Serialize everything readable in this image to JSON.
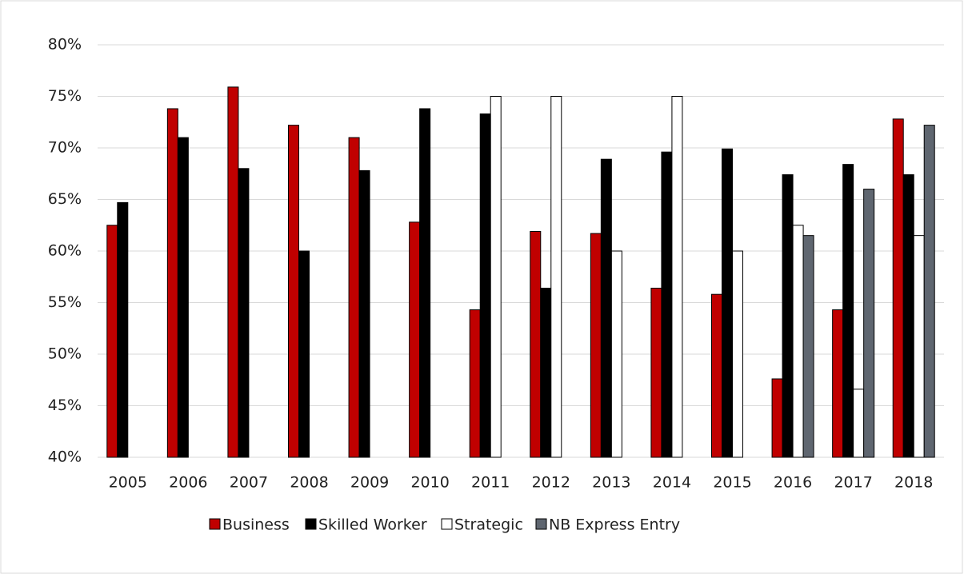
{
  "chart_data": {
    "type": "bar",
    "categories": [
      "2005",
      "2006",
      "2007",
      "2008",
      "2009",
      "2010",
      "2011",
      "2012",
      "2013",
      "2014",
      "2015",
      "2016",
      "2017",
      "2018"
    ],
    "series": [
      {
        "name": "Business",
        "color": "#c00000",
        "values": [
          62.5,
          73.8,
          75.9,
          72.2,
          71.0,
          62.8,
          54.3,
          61.9,
          61.7,
          56.4,
          55.8,
          47.6,
          54.3,
          72.8
        ]
      },
      {
        "name": "Skilled Worker",
        "color": "#000000",
        "values": [
          64.7,
          71.0,
          68.0,
          60.0,
          67.8,
          73.8,
          73.3,
          56.4,
          68.9,
          69.6,
          69.9,
          67.4,
          68.4,
          67.4
        ]
      },
      {
        "name": "Strategic",
        "color": "#ffffff",
        "values": [
          null,
          null,
          null,
          null,
          null,
          null,
          75.0,
          75.0,
          60.0,
          75.0,
          60.0,
          62.5,
          46.6,
          61.5
        ]
      },
      {
        "name": "NB Express Entry",
        "color": "#5f6670",
        "values": [
          null,
          null,
          null,
          null,
          null,
          null,
          null,
          null,
          null,
          null,
          null,
          61.5,
          66.0,
          72.2
        ]
      }
    ],
    "ylim": [
      40,
      80
    ],
    "yticks": [
      {
        "value": 40,
        "label": "40%"
      },
      {
        "value": 45,
        "label": "45%"
      },
      {
        "value": 50,
        "label": "50%"
      },
      {
        "value": 55,
        "label": "55%"
      },
      {
        "value": 60,
        "label": "60%"
      },
      {
        "value": 65,
        "label": "65%"
      },
      {
        "value": 70,
        "label": "70%"
      },
      {
        "value": 75,
        "label": "75%"
      },
      {
        "value": 80,
        "label": "80%"
      }
    ],
    "grid": true,
    "legend": "bottom"
  }
}
